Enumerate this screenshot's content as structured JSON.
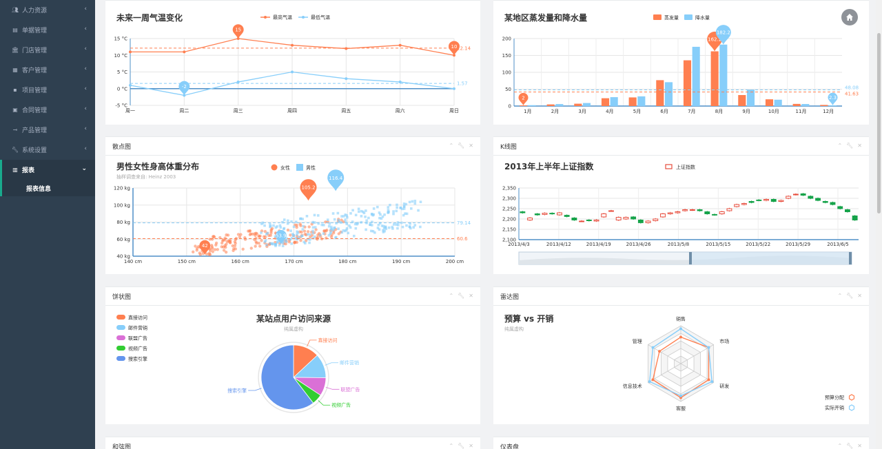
{
  "sidebar": {
    "items": [
      {
        "label": "人力资源",
        "icon": "users-icon"
      },
      {
        "label": "单据管理",
        "icon": "file-icon"
      },
      {
        "label": "门店管理",
        "icon": "bank-icon"
      },
      {
        "label": "客户管理",
        "icon": "briefcase-icon"
      },
      {
        "label": "项目管理",
        "icon": "grid-icon"
      },
      {
        "label": "合同管理",
        "icon": "contract-icon"
      },
      {
        "label": "产品管理",
        "icon": "product-icon"
      },
      {
        "label": "系统设置",
        "icon": "wrench-icon"
      },
      {
        "label": "报表",
        "icon": "bar-chart-icon",
        "active": true
      }
    ],
    "subitems": [
      {
        "label": "报表信息"
      }
    ]
  },
  "panels": {
    "scatter": {
      "header": "散点图"
    },
    "kline": {
      "header": "K线图"
    },
    "pie": {
      "header": "饼状图"
    },
    "radar": {
      "header": "雷达图"
    },
    "chord": {
      "header": "和弦图"
    },
    "gauge": {
      "header": "仪表盘"
    }
  },
  "chart_data": [
    {
      "type": "line",
      "title": "未来一周气温变化",
      "categories": [
        "周一",
        "周二",
        "周三",
        "周四",
        "周五",
        "周六",
        "周日"
      ],
      "series": [
        {
          "name": "最高气温",
          "values": [
            11,
            11,
            15,
            13,
            12,
            13,
            10
          ],
          "color": "#ff7f50"
        },
        {
          "name": "最低气温",
          "values": [
            1,
            -2,
            2,
            5,
            3,
            2,
            0
          ],
          "color": "#87cefa"
        }
      ],
      "yticks": [
        "-5 °C",
        "0 °C",
        "5 °C",
        "10 °C",
        "15 °C"
      ],
      "ylim": [
        -5,
        15
      ],
      "markPoints": [
        {
          "series": 0,
          "index": 2,
          "label": "15"
        },
        {
          "series": 0,
          "index": 6,
          "label": "10"
        },
        {
          "series": 1,
          "index": 1,
          "label": "-2"
        }
      ],
      "markLines": [
        {
          "series": 0,
          "value": 12.14,
          "label": "12.14"
        },
        {
          "series": 1,
          "value": 1.57,
          "label": "1.57"
        }
      ]
    },
    {
      "type": "bar",
      "title": "某地区蒸发量和降水量",
      "categories": [
        "1月",
        "2月",
        "3月",
        "4月",
        "5月",
        "6月",
        "7月",
        "8月",
        "9月",
        "10月",
        "11月",
        "12月"
      ],
      "series": [
        {
          "name": "蒸发量",
          "values": [
            2,
            4.9,
            7,
            23.2,
            25.6,
            76.7,
            135.6,
            162.2,
            32.6,
            20,
            6.4,
            3.3
          ],
          "color": "#ff7f50"
        },
        {
          "name": "降水量",
          "values": [
            2.6,
            5.9,
            9,
            26.4,
            28.7,
            70.7,
            175.6,
            182.2,
            48.7,
            18.8,
            6,
            2.3
          ],
          "color": "#87cefa"
        }
      ],
      "yticks": [
        "0",
        "50",
        "100",
        "150",
        "200"
      ],
      "ylim": [
        0,
        200
      ],
      "markPoints": [
        {
          "series": 0,
          "index": 0,
          "label": "2"
        },
        {
          "series": 0,
          "index": 7,
          "label": "162.2"
        },
        {
          "series": 1,
          "index": 7,
          "label": "182.2"
        },
        {
          "series": 1,
          "index": 11,
          "label": "2.3"
        }
      ],
      "markLines": [
        {
          "series": 0,
          "value": 41.63,
          "label": "41.63"
        },
        {
          "series": 1,
          "value": 48.08,
          "label": "48.08"
        }
      ]
    },
    {
      "type": "scatter",
      "title": "男性女性身高体重分布",
      "subtitle": "抽样调查来自: Heinz  2003",
      "xticks": [
        "140 cm",
        "150 cm",
        "160 cm",
        "170 cm",
        "180 cm",
        "190 cm",
        "200 cm"
      ],
      "yticks": [
        "40 kg",
        "60 kg",
        "80 kg",
        "100 kg",
        "120 kg"
      ],
      "xlim": [
        140,
        200
      ],
      "ylim": [
        40,
        120
      ],
      "series": [
        {
          "name": "女性",
          "color": "#ff7f50"
        },
        {
          "name": "男性",
          "color": "#87cefa"
        }
      ],
      "markPoints": [
        {
          "series": 0,
          "x": 172.7,
          "y": 105.2,
          "label": "105.2"
        },
        {
          "series": 0,
          "x": 153.4,
          "y": 42,
          "label": "42"
        },
        {
          "series": 1,
          "x": 177.8,
          "y": 116.4,
          "label": "116.4"
        },
        {
          "series": 1,
          "x": 167.6,
          "y": 53.9,
          "label": "53.9"
        }
      ],
      "markLines": [
        {
          "series": 0,
          "value": 60.6,
          "label": "60.6"
        },
        {
          "series": 1,
          "value": 79.14,
          "label": "79.14"
        }
      ]
    },
    {
      "type": "candlestick",
      "title": "2013年上半年上证指数",
      "legend": [
        "上证指数"
      ],
      "xticks": [
        "2013/4/3",
        "2013/4/12",
        "2013/4/19",
        "2013/4/26",
        "2013/5/8",
        "2013/5/15",
        "2013/5/22",
        "2013/5/29",
        "2013/6/5"
      ],
      "yticks": [
        "2,100",
        "2,150",
        "2,200",
        "2,250",
        "2,300",
        "2,350"
      ],
      "ylim": [
        2100,
        2350
      ]
    },
    {
      "type": "pie",
      "title": "某站点用户访问来源",
      "subtitle": "纯属虚构",
      "slices": [
        {
          "name": "直接访问",
          "value": 335,
          "color": "#ff7f50"
        },
        {
          "name": "邮件营销",
          "value": 310,
          "color": "#87cefa"
        },
        {
          "name": "联盟广告",
          "value": 234,
          "color": "#da70d6"
        },
        {
          "name": "视频广告",
          "value": 135,
          "color": "#32cd32"
        },
        {
          "name": "搜索引擎",
          "value": 1548,
          "color": "#6495ed"
        }
      ]
    },
    {
      "type": "radar",
      "title": "预算 vs 开销",
      "subtitle": "纯属虚构",
      "indicators": [
        "销售",
        "市场",
        "研发",
        "客服",
        "信息技术",
        "管理"
      ],
      "series": [
        {
          "name": "预算分配",
          "values": [
            0.7,
            0.85,
            0.85,
            0.9,
            0.85,
            0.65
          ],
          "color": "#ff7f50"
        },
        {
          "name": "实际开销",
          "values": [
            0.92,
            0.85,
            0.95,
            0.85,
            0.95,
            0.85
          ],
          "color": "#87cefa"
        }
      ]
    }
  ]
}
